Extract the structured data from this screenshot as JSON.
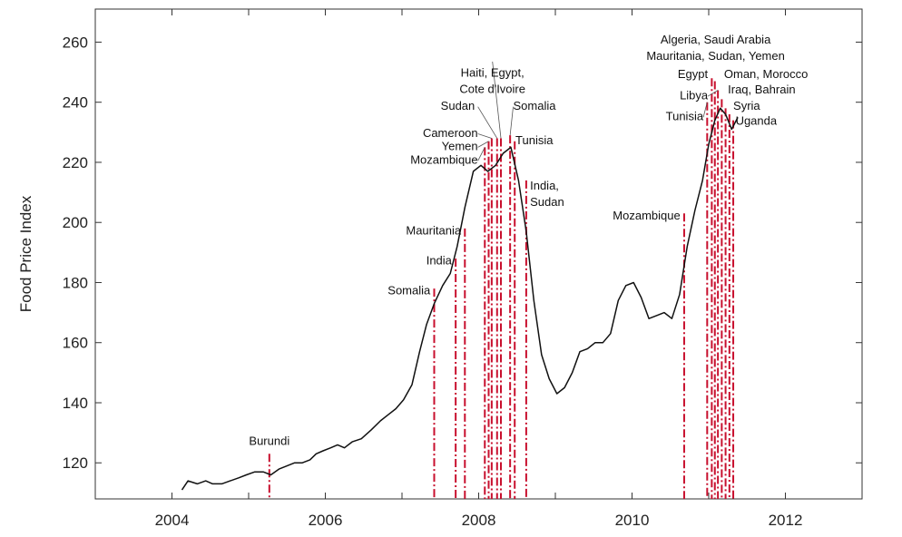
{
  "chart_data": {
    "type": "line",
    "title": "",
    "xlabel": "",
    "ylabel": "Food Price Index",
    "xlim": [
      2003.0,
      2013.0
    ],
    "ylim": [
      108,
      271
    ],
    "x_ticks": [
      2004,
      2006,
      2008,
      2010,
      2012
    ],
    "x_tick_labels": [
      "2004",
      "2006",
      "2008",
      "2010",
      "2012"
    ],
    "y_ticks": [
      120,
      140,
      160,
      180,
      200,
      220,
      240,
      260
    ],
    "y_tick_labels": [
      "120",
      "140",
      "160",
      "180",
      "200",
      "220",
      "240",
      "260"
    ],
    "grid": false,
    "colors": {
      "line": "#111111",
      "events": "#c8102e",
      "frame": "#333333"
    },
    "series": [
      {
        "x": [
          2004.13,
          2004.21,
          2004.33,
          2004.44,
          2004.53,
          2004.65,
          2004.76,
          2004.87,
          2004.97,
          2005.08,
          2005.19,
          2005.29,
          2005.4,
          2005.5,
          2005.6,
          2005.7,
          2005.8,
          2005.88,
          2005.97,
          2006.07,
          2006.16,
          2006.25,
          2006.35,
          2006.47,
          2006.6,
          2006.72,
          2006.82,
          2006.92,
          2007.02,
          2007.13,
          2007.23,
          2007.32,
          2007.42,
          2007.53,
          2007.63,
          2007.72,
          2007.82,
          2007.93,
          2008.03,
          2008.12,
          2008.22,
          2008.32,
          2008.42,
          2008.52,
          2008.62,
          2008.72,
          2008.82,
          2008.92,
          2009.02,
          2009.12,
          2009.22,
          2009.32,
          2009.42,
          2009.52,
          2009.62,
          2009.72,
          2009.82,
          2009.92,
          2010.02,
          2010.12,
          2010.22,
          2010.32,
          2010.42,
          2010.52,
          2010.62,
          2010.72,
          2010.82,
          2010.92,
          2011.0,
          2011.08,
          2011.15,
          2011.22,
          2011.3,
          2011.38
        ],
        "y": [
          111,
          114,
          113,
          114,
          113,
          113,
          114,
          115,
          116,
          117,
          117,
          116,
          118,
          119,
          120,
          120,
          121,
          123,
          124,
          125,
          126,
          125,
          127,
          128,
          131,
          134,
          136,
          138,
          141,
          146,
          157,
          166,
          173,
          179,
          183,
          192,
          205,
          217,
          219,
          217,
          219,
          223,
          225,
          214,
          197,
          174,
          156,
          148,
          143,
          145,
          150,
          157,
          158,
          160,
          160,
          163,
          174,
          179,
          180,
          175,
          168,
          169,
          170,
          168,
          176,
          192,
          204,
          214,
          226,
          234,
          238,
          236,
          231,
          235
        ]
      }
    ],
    "events": [
      {
        "x": 2005.27,
        "y_top": 123,
        "labels": [
          "Burundi"
        ],
        "label_x": 2005.27,
        "label_anchor": "middle",
        "label_y": 126,
        "leader": false
      },
      {
        "x": 2007.42,
        "y_top": 178,
        "labels": [
          "Somalia"
        ],
        "label_x": 2007.37,
        "label_anchor": "end",
        "label_y": 176,
        "leader": false
      },
      {
        "x": 2007.7,
        "y_top": 188,
        "labels": [
          "India"
        ],
        "label_x": 2007.65,
        "label_anchor": "end",
        "label_y": 186,
        "leader": false
      },
      {
        "x": 2007.82,
        "y_top": 198,
        "labels": [
          "Mauritania"
        ],
        "label_x": 2007.77,
        "label_anchor": "end",
        "label_y": 196,
        "leader": false
      },
      {
        "x": 2008.08,
        "y_top": 225,
        "labels": [
          "Mozambique"
        ],
        "label_x": 2007.99,
        "label_anchor": "end",
        "label_y": 219.5,
        "leader": true,
        "leader_from": [
          2007.99,
          220.5
        ]
      },
      {
        "x": 2008.13,
        "y_top": 227,
        "labels": [
          "Yemen"
        ],
        "label_x": 2007.99,
        "label_anchor": "end",
        "label_y": 224,
        "leader": true,
        "leader_from": [
          2007.99,
          225
        ]
      },
      {
        "x": 2008.17,
        "y_top": 228,
        "labels": [
          "Cameroon"
        ],
        "label_x": 2007.99,
        "label_anchor": "end",
        "label_y": 228.5,
        "leader": true,
        "leader_from": [
          2007.99,
          229.5
        ]
      },
      {
        "x": 2008.24,
        "y_top": 228,
        "labels": [
          "Sudan"
        ],
        "label_x": 2007.95,
        "label_anchor": "end",
        "label_y": 237.5,
        "leader": true,
        "leader_from": [
          2007.99,
          238.5
        ]
      },
      {
        "x": 2008.29,
        "y_top": 228,
        "labels": [
          "Haiti, Egypt,",
          "Cote d'Ivoire"
        ],
        "label_x": 2008.18,
        "label_anchor": "middle",
        "label_y": 248.5,
        "leader": true,
        "leader_from": [
          2008.18,
          253.5
        ]
      },
      {
        "x": 2008.41,
        "y_top": 229,
        "labels": [
          "Somalia"
        ],
        "label_x": 2008.45,
        "label_anchor": "start",
        "label_y": 237.5,
        "leader": true,
        "leader_from": [
          2008.45,
          238.5
        ]
      },
      {
        "x": 2008.47,
        "y_top": 227,
        "labels": [
          "Tunisia"
        ],
        "label_x": 2008.48,
        "label_anchor": "start",
        "label_y": 226,
        "leader": false
      },
      {
        "x": 2008.62,
        "y_top": 214,
        "labels": [
          "India,",
          "Sudan"
        ],
        "label_x": 2008.67,
        "label_anchor": "start",
        "label_y": 211,
        "leader": false
      },
      {
        "x": 2010.68,
        "y_top": 203,
        "labels": [
          "Mozambique"
        ],
        "label_x": 2010.63,
        "label_anchor": "end",
        "label_y": 201,
        "leader": false
      },
      {
        "x": 2010.98,
        "y_top": 240,
        "labels": [
          "Tunisia"
        ],
        "label_x": 2010.93,
        "label_anchor": "end",
        "label_y": 234,
        "leader": true,
        "leader_from": [
          2010.93,
          235
        ]
      },
      {
        "x": 2011.04,
        "y_top": 248,
        "labels": [
          "Egypt"
        ],
        "label_x": 2010.99,
        "label_anchor": "end",
        "label_y": 248,
        "leader": false
      },
      {
        "x": 2011.08,
        "y_top": 247,
        "labels": [
          "Algeria, Saudi Arabia",
          "Mauritania, Sudan, Yemen"
        ],
        "label_x": 2011.09,
        "label_anchor": "middle",
        "label_y": 259.5,
        "leader": false
      },
      {
        "x": 2011.12,
        "y_top": 244,
        "labels": [
          "Libya"
        ],
        "label_x": 2010.99,
        "label_anchor": "end",
        "label_y": 241,
        "leader": true,
        "leader_from": [
          2010.99,
          242
        ]
      },
      {
        "x": 2011.17,
        "y_top": 241,
        "labels": [
          "Oman, Morocco"
        ],
        "label_x": 2011.2,
        "label_anchor": "start",
        "label_y": 248,
        "leader": false
      },
      {
        "x": 2011.22,
        "y_top": 238,
        "labels": [
          "Iraq, Bahrain"
        ],
        "label_x": 2011.25,
        "label_anchor": "start",
        "label_y": 243,
        "leader": false
      },
      {
        "x": 2011.27,
        "y_top": 236,
        "labels": [
          "Syria"
        ],
        "label_x": 2011.32,
        "label_anchor": "start",
        "label_y": 237.5,
        "leader": false
      },
      {
        "x": 2011.32,
        "y_top": 234,
        "labels": [
          "Uganda"
        ],
        "label_x": 2011.35,
        "label_anchor": "start",
        "label_y": 232.5,
        "leader": false
      }
    ]
  }
}
